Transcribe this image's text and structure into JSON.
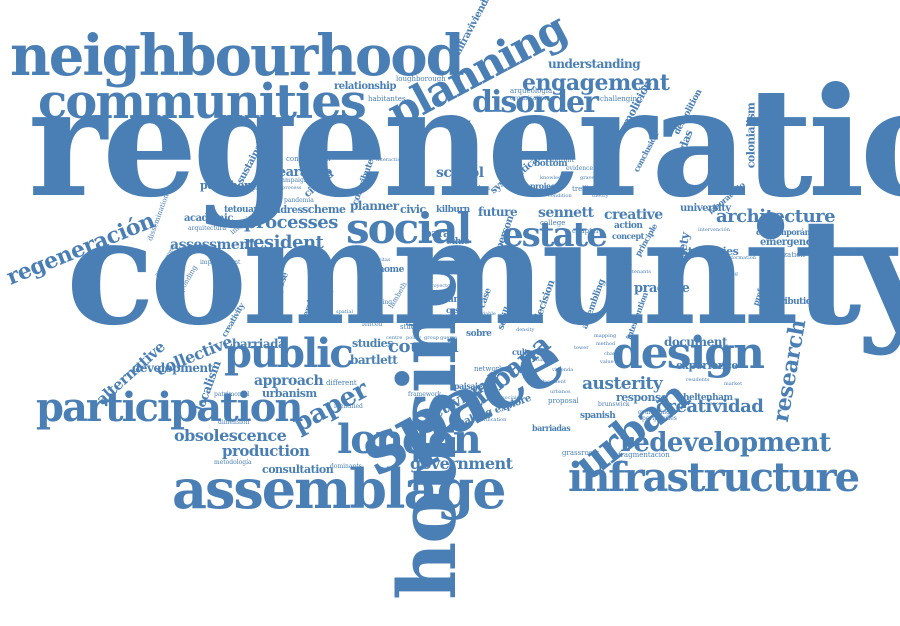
{
  "color": "#4a7fb5",
  "words": {
    "regeneration": "regeneration",
    "community": "community",
    "housing": "housing",
    "space": "space",
    "neighbourhood": "neighbourhood",
    "communities": "communities",
    "assemblage": "assemblage",
    "infrastructure": "infrastructure",
    "participation": "participation",
    "london": "london",
    "design": "design",
    "planning": "planning",
    "social": "social",
    "estate": "estate",
    "public": "public",
    "disorder": "disorder",
    "urban": "urban",
    "engagement": "engagement",
    "redevelopment": "redevelopment",
    "regeneracion": "regeneración",
    "processes": "processes",
    "resident": "resident",
    "obsolescence": "obsolescence",
    "urbana": "urbana",
    "paper": "paper",
    "architecture": "architecture",
    "council": "council",
    "government": "government",
    "production": "production",
    "research": "research",
    "creatividad": "creatividad",
    "austerity": "austerity",
    "assessment": "assessment",
    "collective": "collective",
    "approach": "approach",
    "activism": "activism",
    "sennett": "sennett",
    "creative": "creative",
    "school": "school",
    "clearance": "clearance",
    "understanding": "understanding",
    "relationship": "relationship",
    "infravivienda": "infravivienda",
    "scheme": "scheme",
    "londres": "londres",
    "tetouan": "tetouan",
    "academic": "academic",
    "periphery": "periphery",
    "sustainability": "sustainability",
    "alternative": "alternative",
    "development": "development",
    "localism": "localism",
    "barriada": "barriada",
    "urbanism": "urbanism",
    "consultation": "consultation",
    "bartlett": "bartlett",
    "studies": "studies",
    "future": "future",
    "civic": "civic",
    "kilburn": "kilburn",
    "planner": "planner",
    "practice": "practice",
    "document": "document",
    "experience": "experience",
    "response": "response",
    "cheltenham": "cheltenham",
    "fragmentacion": "fragmentación",
    "university": "university",
    "emergence": "emergence",
    "contemporanea": "contemporánea",
    "colonialism": "colonialism",
    "demolicion": "demolición",
    "viviendas": "viviendas",
    "society": "society",
    "strategies": "strategies",
    "making": "making",
    "explore": "explore",
    "barriadas": "barriadas",
    "spanish": "spanish",
    "thinking": "thinking",
    "loughborough": "loughborough",
    "arqueologia": "arqueología",
    "organisation": "organisation",
    "challenging": "challenging",
    "conclusion": "conclusion",
    "demolition": "demolition",
    "intervention": "intervention",
    "system": "system",
    "critical": "critical",
    "bottom": "bottom",
    "action": "action",
    "concept": "concept",
    "chapter": "chapter",
    "college": "college",
    "project": "project",
    "impact": "impact",
    "plan": "plan",
    "para": "para",
    "ethic": "ethic",
    "person": "person",
    "home": "home",
    "artist": "artist",
    "case": "case",
    "caso": "caso",
    "studio": "studio",
    "study": "study",
    "decision": "decision",
    "estrategia": "estrategia",
    "assembling": "assembling",
    "seville": "seville",
    "grassroots": "grassroots",
    "paisaje": "paisaje",
    "cultural": "cultural",
    "network": "network",
    "proposal": "proposal",
    "fenced": "fenced",
    "propose": "propose",
    "territories": "territories",
    "contribution": "contribution",
    "profesional": "profesional",
    "colonization": "colonization",
    "laboratorio": "laboratorio",
    "ciudad": "ciudad",
    "contribute": "contribute",
    "habitantes": "habitantes",
    "construction": "construction",
    "dissemination": "dissemination",
    "improvement": "improvement",
    "initiative": "initiative",
    "creativity": "creativity",
    "responding": "responding",
    "programme": "programme",
    "different": "different",
    "lambeth": "lambeth",
    "pandemia": "pandemia",
    "sobre": "sobre",
    "centre": "centre",
    "policy": "policy",
    "group": "group",
    "guerra": "guerra",
    "brunswick": "brunswick",
    "evaluating": "evaluating",
    "peripheries": "peripheries",
    "patrimonial": "patrimonial",
    "arquitectura": "arquitectura",
    "metodologia": "metodología",
    "dimension": "dimension",
    "dominants": "dominants",
    "depending": "depending",
    "identified": "identified",
    "framework": "framework",
    "campaign": "campaign",
    "producing": "producing",
    "process": "process",
    "interaction": "interaction",
    "trellick": "trellick",
    "retrofit": "retrofit",
    "evidence": "evidence",
    "gravelle": "gravelle",
    "knowledge": "knowledge",
    "condition": "condition",
    "theory": "theory",
    "principle": "principle",
    "intervencion": "intervención",
    "transformation": "transformation",
    "framing": "framing",
    "sociales": "sociales",
    "urbanos": "urbanos",
    "vivienda": "vivienda",
    "barrio": "barrio",
    "tower": "tower",
    "context": "context",
    "mapping": "mapping",
    "method": "method",
    "local": "local",
    "tenants": "tenants",
    "residents": "residents",
    "market": "market",
    "economy": "economy",
    "value": "value",
    "change": "change",
    "place": "place",
    "spatial": "spatial",
    "civitas": "civitas",
    "memory": "memory",
    "heritage": "heritage",
    "proyecto": "proyecto",
    "social_2": "social",
    "urban_2": "urban",
    "gentrification": "gentrification",
    "displacement": "displacement",
    "affordable": "affordable",
    "density": "density"
  }
}
